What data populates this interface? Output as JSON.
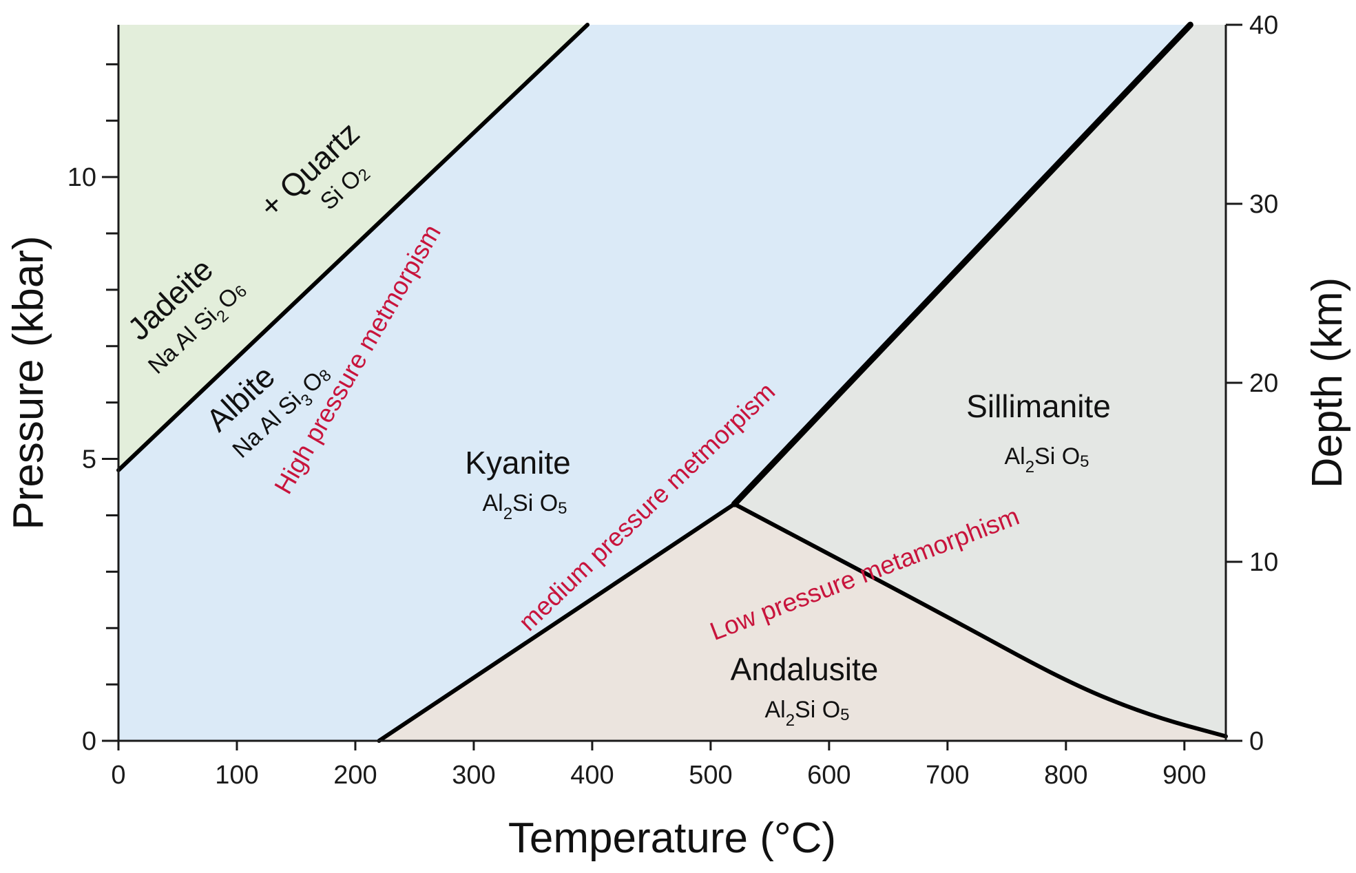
{
  "chart_data": {
    "type": "phase-diagram",
    "title": "",
    "xlabel": "Temperature (°C)",
    "ylabel": "Pressure (kbar)",
    "y2label": "Depth (km)",
    "xlim": [
      0,
      935
    ],
    "ylim": [
      0,
      12.7
    ],
    "y2lim": [
      0,
      40
    ],
    "x_ticks": [
      0,
      100,
      200,
      300,
      400,
      500,
      600,
      700,
      800,
      900
    ],
    "y_major_ticks": [
      0,
      5,
      10
    ],
    "y_minor_ticks": [
      1,
      2,
      3,
      4,
      6,
      7,
      8,
      9,
      11,
      12
    ],
    "y2_ticks": [
      0,
      10,
      20,
      30,
      40
    ],
    "triple_point": {
      "temperature": 520,
      "pressure": 4.2
    },
    "boundaries": [
      {
        "name": "jadeite-quartz / albite",
        "points": [
          [
            0,
            4.8
          ],
          [
            396,
            12.7
          ]
        ]
      },
      {
        "name": "kyanite / andalusite",
        "points": [
          [
            220,
            0
          ],
          [
            520,
            4.2
          ]
        ]
      },
      {
        "name": "kyanite / sillimanite",
        "points": [
          [
            520,
            4.2
          ],
          [
            905,
            12.7
          ]
        ]
      },
      {
        "name": "andalusite / sillimanite",
        "points": [
          [
            520,
            4.2
          ],
          [
            700,
            2.2
          ],
          [
            800,
            1.05
          ],
          [
            870,
            0.45
          ],
          [
            935,
            0.08
          ]
        ]
      }
    ],
    "fields": [
      {
        "name": "Jadeite + Quartz",
        "color": "#e3eedb"
      },
      {
        "name": "Albite / Kyanite",
        "color": "#dbeaf7"
      },
      {
        "name": "Sillimanite",
        "color": "#e4e7e4"
      },
      {
        "name": "Andalusite",
        "color": "#ebe4de"
      }
    ],
    "annotations": {
      "jadeite": {
        "name": "Jadeite",
        "formula": [
          "Na Al Si",
          "2",
          "O",
          "6"
        ]
      },
      "quartz": {
        "name": "+ Quartz",
        "formula": [
          "Si O",
          "2"
        ]
      },
      "albite": {
        "name": "Albite",
        "formula": [
          "Na Al Si",
          "3",
          "O",
          "8"
        ]
      },
      "kyanite": {
        "name": "Kyanite",
        "formula": [
          "Al",
          "2",
          "Si O",
          "5"
        ]
      },
      "sillimanite": {
        "name": "Sillimanite",
        "formula": [
          "Al",
          "2",
          "Si O",
          "5"
        ]
      },
      "andalusite": {
        "name": "Andalusite",
        "formula": [
          "Al",
          "2",
          "Si O",
          "5"
        ]
      },
      "high_pressure": "High pressure metmorpism",
      "medium_pressure": "medium pressure metmorpism",
      "low_pressure": "Low pressure metamorphism"
    },
    "colors": {
      "boundary": "#000000",
      "regime_text": "#c8143c",
      "axis": "#1a1a1a"
    }
  }
}
